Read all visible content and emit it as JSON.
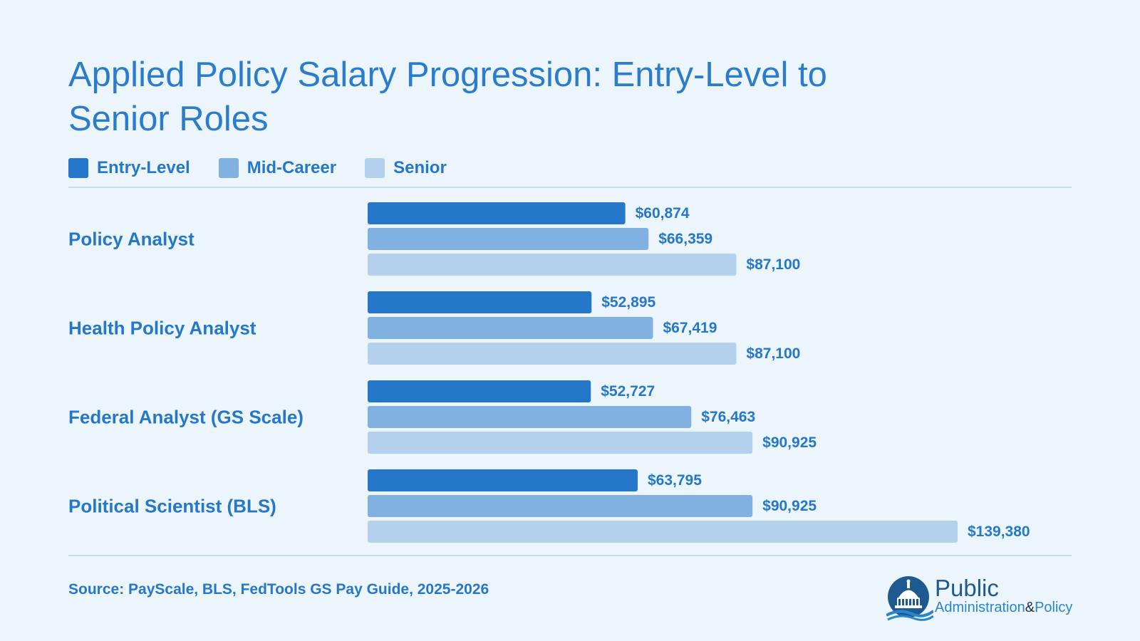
{
  "chart_data": {
    "type": "bar",
    "orientation": "horizontal",
    "title": "Applied Policy Salary Progression: Entry-Level to Senior Roles",
    "categories": [
      "Policy Analyst",
      "Health Policy Analyst",
      "Federal Analyst (GS Scale)",
      "Political Scientist (BLS)"
    ],
    "series": [
      {
        "name": "Entry-Level",
        "color": "#2577c9",
        "values": [
          60874,
          52895,
          52727,
          63795
        ],
        "labels": [
          "$60,874",
          "$52,895",
          "$52,727",
          "$63,795"
        ]
      },
      {
        "name": "Mid-Career",
        "color": "#80b1e1",
        "values": [
          66359,
          67419,
          76463,
          90925
        ],
        "labels": [
          "$66,359",
          "$67,419",
          "$76,463",
          "$90,925"
        ]
      },
      {
        "name": "Senior",
        "color": "#b3d1ed",
        "values": [
          87100,
          87100,
          90925,
          139380
        ],
        "labels": [
          "$87,100",
          "$87,100",
          "$90,925",
          "$139,380"
        ]
      }
    ],
    "xlim": [
      0,
      139380
    ],
    "legend_position": "top-left",
    "grid": false,
    "source": "Source: PayScale, BLS, FedTools GS Pay Guide, 2025-2026"
  },
  "logo": {
    "line1": "Public",
    "line2": "Administration",
    "amp": "&",
    "line3": "Policy"
  }
}
